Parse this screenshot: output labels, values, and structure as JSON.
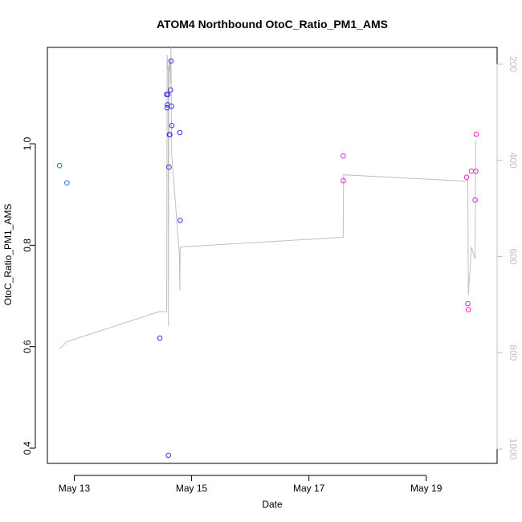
{
  "chart_data": {
    "type": "scatter",
    "title": "ATOM4 Northbound OtoC_Ratio_PM1_AMS",
    "xlabel": "Date",
    "ylabel": "OtoC_Ratio_PM1_AMS",
    "y2label": "",
    "xlim": [
      "2014-05-12T13:00",
      "2014-05-20T05:00"
    ],
    "ylim": [
      0.37,
      1.19
    ],
    "y2lim": [
      1030,
      165
    ],
    "xticks": [
      {
        "label": "May 13",
        "value": "2014-05-13T00:00"
      },
      {
        "label": "May 15",
        "value": "2014-05-15T00:00"
      },
      {
        "label": "May 17",
        "value": "2014-05-17T00:00"
      },
      {
        "label": "May 19",
        "value": "2014-05-19T00:00"
      }
    ],
    "yticks": [
      0.4,
      0.6,
      0.8,
      1.0
    ],
    "yticklabels": [
      "0.4",
      "0.6",
      "0.8",
      "1.0"
    ],
    "y2ticks": [
      200,
      400,
      600,
      800,
      1000
    ],
    "y2ticklabels": [
      "200",
      "400",
      "600",
      "800",
      "1000"
    ],
    "grid": false,
    "colors": {
      "axis": "#000000",
      "secondary_axis": "#c0c0c0",
      "line": "#c0c0c0",
      "series_blue_early": "#2f6ef5",
      "series_blue": "#3a2ee8",
      "series_magenta_mid": "#cc33dd",
      "series_magenta": "#ee22cc"
    },
    "points": [
      {
        "x": "2014-05-12T18:00",
        "y": 0.957,
        "color": "#2f6ef5"
      },
      {
        "x": "2014-05-12T21:00",
        "y": 0.923,
        "color": "#2f6ef5"
      },
      {
        "x": "2014-05-14T11:00",
        "y": 0.617,
        "color": "#3a2ee8"
      },
      {
        "x": "2014-05-14T13:45",
        "y": 1.097,
        "color": "#3a2ee8"
      },
      {
        "x": "2014-05-14T14:00",
        "y": 1.071,
        "color": "#3a2ee8"
      },
      {
        "x": "2014-05-14T14:10",
        "y": 1.077,
        "color": "#3a2ee8"
      },
      {
        "x": "2014-05-14T14:20",
        "y": 1.097,
        "color": "#3a2ee8"
      },
      {
        "x": "2014-05-14T14:30",
        "y": 0.386,
        "color": "#3a2ee8"
      },
      {
        "x": "2014-05-14T14:45",
        "y": 0.954,
        "color": "#3a2ee8"
      },
      {
        "x": "2014-05-14T14:55",
        "y": 1.018,
        "color": "#3a2ee8"
      },
      {
        "x": "2014-05-14T15:05",
        "y": 1.018,
        "color": "#3a2ee8"
      },
      {
        "x": "2014-05-14T15:25",
        "y": 1.106,
        "color": "#3a2ee8"
      },
      {
        "x": "2014-05-14T15:35",
        "y": 1.163,
        "color": "#3a2ee8"
      },
      {
        "x": "2014-05-14T15:45",
        "y": 1.074,
        "color": "#3a2ee8"
      },
      {
        "x": "2014-05-14T15:55",
        "y": 1.036,
        "color": "#3a2ee8"
      },
      {
        "x": "2014-05-14T19:10",
        "y": 1.022,
        "color": "#3a2ee8"
      },
      {
        "x": "2014-05-14T19:20",
        "y": 0.849,
        "color": "#3a2ee8"
      },
      {
        "x": "2014-05-17T14:00",
        "y": 0.976,
        "color": "#cc33dd"
      },
      {
        "x": "2014-05-17T14:05",
        "y": 0.927,
        "color": "#cc33dd"
      },
      {
        "x": "2014-05-19T16:30",
        "y": 0.934,
        "color": "#ee22cc"
      },
      {
        "x": "2014-05-19T17:00",
        "y": 0.685,
        "color": "#ee22cc"
      },
      {
        "x": "2014-05-19T17:15",
        "y": 0.673,
        "color": "#ee22cc"
      },
      {
        "x": "2014-05-19T18:30",
        "y": 0.946,
        "color": "#ee22cc"
      },
      {
        "x": "2014-05-19T20:00",
        "y": 0.889,
        "color": "#ee22cc"
      },
      {
        "x": "2014-05-19T20:15",
        "y": 0.946,
        "color": "#ee22cc"
      },
      {
        "x": "2014-05-19T20:30",
        "y": 1.019,
        "color": "#ee22cc"
      }
    ],
    "line_axis": "y2",
    "line": [
      {
        "x": "2014-05-12T18:00",
        "y2": 792
      },
      {
        "x": "2014-05-12T21:00",
        "y2": 777
      },
      {
        "x": "2014-05-14T11:00",
        "y2": 714
      },
      {
        "x": "2014-05-14T13:50",
        "y2": 715
      },
      {
        "x": "2014-05-14T14:00",
        "y2": 180
      },
      {
        "x": "2014-05-14T14:15",
        "y2": 212
      },
      {
        "x": "2014-05-14T14:25",
        "y2": 205
      },
      {
        "x": "2014-05-14T14:30",
        "y2": 745
      },
      {
        "x": "2014-05-14T14:35",
        "y2": 560
      },
      {
        "x": "2014-05-14T14:45",
        "y2": 200
      },
      {
        "x": "2014-05-14T15:00",
        "y2": 215
      },
      {
        "x": "2014-05-14T15:10",
        "y2": 190
      },
      {
        "x": "2014-05-14T15:25",
        "y2": 240
      },
      {
        "x": "2014-05-14T15:35",
        "y2": 165
      },
      {
        "x": "2014-05-14T15:50",
        "y2": 385
      },
      {
        "x": "2014-05-14T19:00",
        "y2": 595
      },
      {
        "x": "2014-05-14T19:10",
        "y2": 670
      },
      {
        "x": "2014-05-14T19:20",
        "y2": 580
      },
      {
        "x": "2014-05-17T14:00",
        "y2": 560
      },
      {
        "x": "2014-05-17T14:10",
        "y2": 430
      },
      {
        "x": "2014-05-19T16:00",
        "y2": 443
      },
      {
        "x": "2014-05-19T17:00",
        "y2": 440
      },
      {
        "x": "2014-05-19T17:15",
        "y2": 680
      },
      {
        "x": "2014-05-19T18:30",
        "y2": 580
      },
      {
        "x": "2014-05-19T20:00",
        "y2": 605
      },
      {
        "x": "2014-05-19T20:15",
        "y2": 360
      },
      {
        "x": "2014-05-19T20:30",
        "y2": 365
      }
    ]
  }
}
